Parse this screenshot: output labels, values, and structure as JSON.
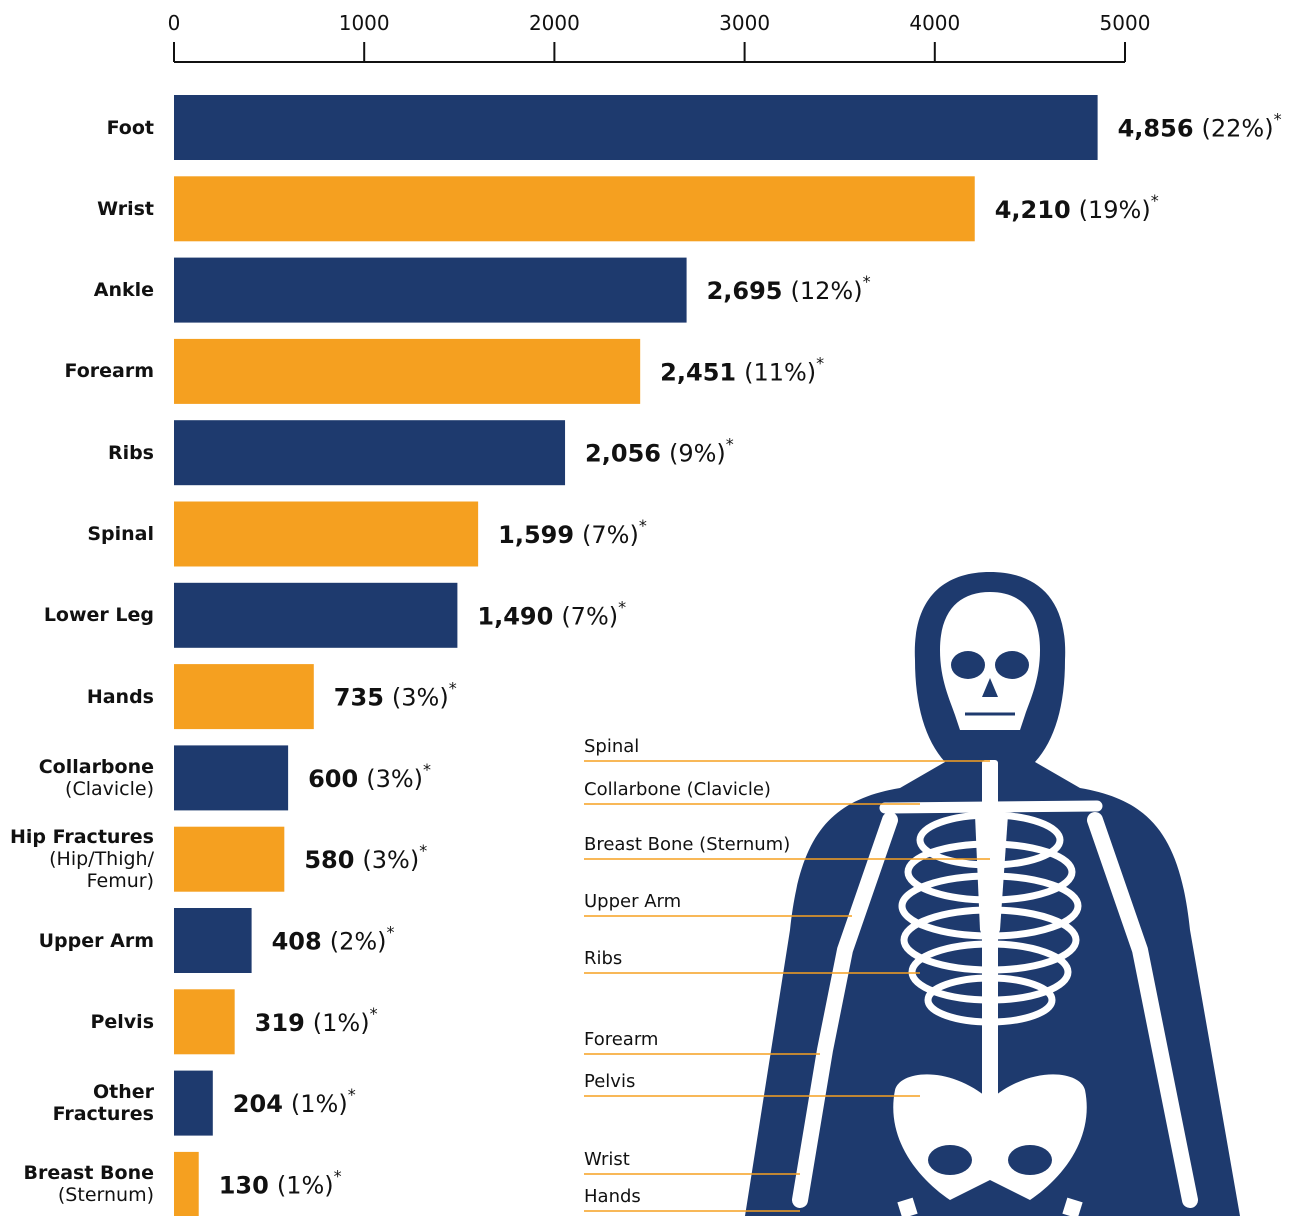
{
  "chart_data": {
    "type": "bar",
    "orientation": "horizontal",
    "categories": [
      "Foot",
      "Wrist",
      "Ankle",
      "Forearm",
      "Ribs",
      "Spinal",
      "Lower Leg",
      "Hands",
      "Collarbone",
      "Hip Fractures",
      "Upper Arm",
      "Pelvis",
      "Other Fractures",
      "Breast Bone"
    ],
    "category_subtitles": [
      null,
      null,
      null,
      null,
      null,
      null,
      null,
      null,
      "(Clavicle)",
      "(Hip/Thigh/ Femur)",
      null,
      null,
      null,
      "(Sternum)"
    ],
    "values": [
      4856,
      4210,
      2695,
      2451,
      2056,
      1599,
      1490,
      735,
      600,
      580,
      408,
      319,
      204,
      130
    ],
    "value_labels": [
      "4,856",
      "4,210",
      "2,695",
      "2,451",
      "2,056",
      "1,599",
      "1,490",
      "735",
      "600",
      "580",
      "408",
      "319",
      "204",
      "130"
    ],
    "percent_labels": [
      "(22%)",
      "(19%)",
      "(12%)",
      "(11%)",
      "(9%)",
      "(7%)",
      "(7%)",
      "(3%)",
      "(3%)",
      "(3%)",
      "(2%)",
      "(1%)",
      "(1%)",
      "(1%)"
    ],
    "footnote_mark": "*",
    "colors": [
      "#1e3a6e",
      "#f5a020",
      "#1e3a6e",
      "#f5a020",
      "#1e3a6e",
      "#f5a020",
      "#1e3a6e",
      "#f5a020",
      "#1e3a6e",
      "#f5a020",
      "#1e3a6e",
      "#f5a020",
      "#1e3a6e",
      "#f5a020"
    ],
    "xlim": [
      0,
      5000
    ],
    "xticks": [
      0,
      1000,
      2000,
      3000,
      4000,
      5000
    ],
    "axis_position": "top",
    "annotations": [
      "Spinal",
      "Collarbone (Clavicle)",
      "Breast Bone (Sternum)",
      "Upper Arm",
      "Ribs",
      "Forearm",
      "Pelvis",
      "Wrist",
      "Hands"
    ],
    "annotation_color": "#f5a020"
  }
}
